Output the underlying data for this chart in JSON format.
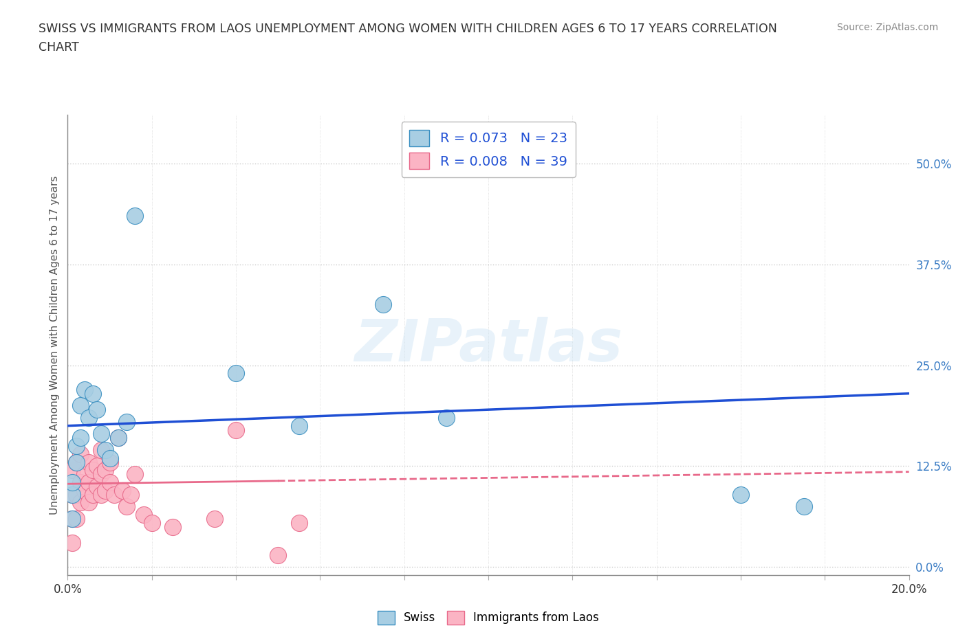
{
  "title_line1": "SWISS VS IMMIGRANTS FROM LAOS UNEMPLOYMENT AMONG WOMEN WITH CHILDREN AGES 6 TO 17 YEARS CORRELATION",
  "title_line2": "CHART",
  "source": "Source: ZipAtlas.com",
  "ylabel": "Unemployment Among Women with Children Ages 6 to 17 years",
  "xlim": [
    0.0,
    0.2
  ],
  "ylim": [
    -0.01,
    0.56
  ],
  "yticks": [
    0.0,
    0.125,
    0.25,
    0.375,
    0.5
  ],
  "ytick_labels": [
    "0.0%",
    "12.5%",
    "25.0%",
    "37.5%",
    "50.0%"
  ],
  "xtick_positions": [
    0.0,
    0.02,
    0.04,
    0.06,
    0.08,
    0.1,
    0.12,
    0.14,
    0.16,
    0.18,
    0.2
  ],
  "xtick_major_labels": {
    "0.0": "0.0%",
    "0.2": "20.0%"
  },
  "swiss_color": "#a8cee3",
  "laos_color": "#fbb4c4",
  "swiss_edge": "#3a8fc1",
  "laos_edge": "#e8698a",
  "trend_swiss_color": "#1f4fd4",
  "trend_laos_color": "#e8698a",
  "swiss_R": 0.073,
  "swiss_N": 23,
  "laos_R": 0.008,
  "laos_N": 39,
  "swiss_trend_x0": 0.0,
  "swiss_trend_y0": 0.175,
  "swiss_trend_x1": 0.2,
  "swiss_trend_y1": 0.215,
  "laos_trend_x0": 0.0,
  "laos_trend_y0": 0.103,
  "laos_trend_x1": 0.2,
  "laos_trend_y1": 0.118,
  "swiss_x": [
    0.001,
    0.001,
    0.001,
    0.002,
    0.002,
    0.003,
    0.003,
    0.004,
    0.005,
    0.006,
    0.007,
    0.008,
    0.009,
    0.01,
    0.012,
    0.014,
    0.016,
    0.04,
    0.055,
    0.075,
    0.09,
    0.16,
    0.175
  ],
  "swiss_y": [
    0.06,
    0.09,
    0.105,
    0.13,
    0.15,
    0.16,
    0.2,
    0.22,
    0.185,
    0.215,
    0.195,
    0.165,
    0.145,
    0.135,
    0.16,
    0.18,
    0.435,
    0.24,
    0.175,
    0.325,
    0.185,
    0.09,
    0.075
  ],
  "laos_x": [
    0.001,
    0.001,
    0.001,
    0.001,
    0.002,
    0.002,
    0.002,
    0.003,
    0.003,
    0.003,
    0.004,
    0.004,
    0.005,
    0.005,
    0.005,
    0.006,
    0.006,
    0.007,
    0.007,
    0.008,
    0.008,
    0.008,
    0.009,
    0.009,
    0.01,
    0.01,
    0.011,
    0.012,
    0.013,
    0.014,
    0.015,
    0.016,
    0.018,
    0.02,
    0.025,
    0.035,
    0.04,
    0.05,
    0.055
  ],
  "laos_y": [
    0.03,
    0.06,
    0.09,
    0.12,
    0.06,
    0.09,
    0.13,
    0.08,
    0.105,
    0.14,
    0.095,
    0.115,
    0.08,
    0.105,
    0.13,
    0.09,
    0.12,
    0.1,
    0.125,
    0.09,
    0.115,
    0.145,
    0.095,
    0.12,
    0.105,
    0.13,
    0.09,
    0.16,
    0.095,
    0.075,
    0.09,
    0.115,
    0.065,
    0.055,
    0.05,
    0.06,
    0.17,
    0.015,
    0.055
  ],
  "watermark": "ZIPatlas",
  "background_color": "#ffffff",
  "grid_color": "#cccccc",
  "grid_style": ":"
}
